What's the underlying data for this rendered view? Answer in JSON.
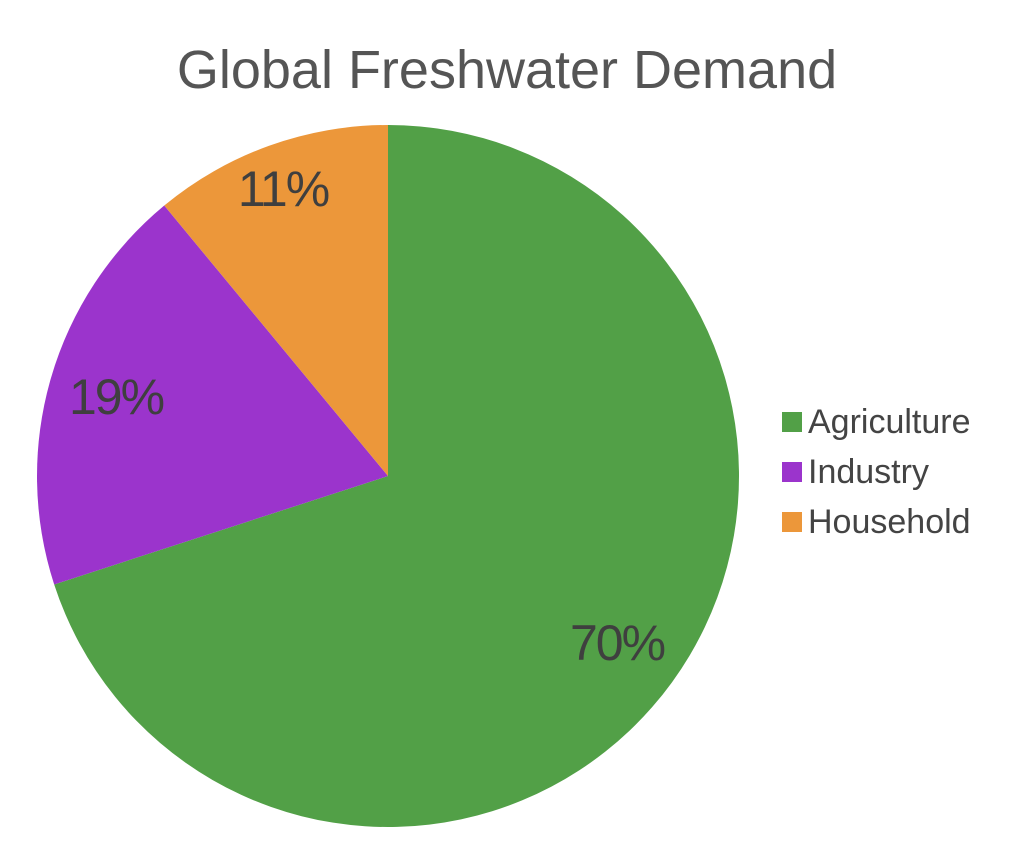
{
  "chart_data": {
    "type": "pie",
    "title": "Global Freshwater Demand",
    "categories": [
      "Agriculture",
      "Industry",
      "Household"
    ],
    "values": [
      70,
      19,
      11
    ],
    "data_labels": [
      "70%",
      "19%",
      "11%"
    ],
    "colors": [
      "#52a047",
      "#9b34cc",
      "#ec973a"
    ],
    "legend": {
      "placement": "right",
      "entries": [
        "Agriculture",
        "Industry",
        "Household"
      ]
    },
    "start_angle": "12 o'clock",
    "direction": "clockwise"
  }
}
